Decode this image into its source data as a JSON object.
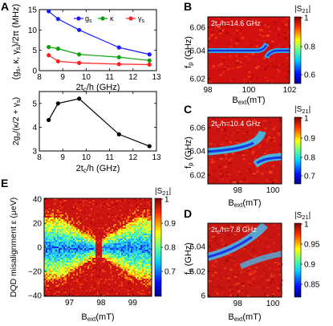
{
  "panel_letters": {
    "A": "A",
    "B": "B",
    "C": "C",
    "D": "D",
    "E": "E"
  },
  "colors": {
    "g_series": "#1a1aff",
    "kappa_series": "#10a010",
    "gamma_series": "#ff2020",
    "black_series": "#000000",
    "heatmap_red": "#d51010",
    "heatmap_yellow": "#f0e020",
    "heatmap_blue": "#1020d0"
  },
  "chart_data": [
    {
      "id": "A-top",
      "type": "line",
      "x": [
        8.4,
        8.8,
        9.7,
        11.4,
        12.7
      ],
      "series": [
        {
          "name": "g",
          "subscript": "s",
          "values": [
            14.6,
            12.7,
            10.0,
            5.7,
            4.0
          ]
        },
        {
          "name": "κ",
          "subscript": "",
          "values": [
            5.8,
            5.4,
            4.0,
            3.3,
            2.5
          ]
        },
        {
          "name": "γ",
          "subscript": "s",
          "values": [
            3.8,
            2.3,
            1.9,
            1.6,
            1.5
          ]
        }
      ],
      "ylabel": "(g",
      "ylabel_parts": [
        "(g",
        "s",
        ", κ, γ",
        "s",
        ")/2π (MHz)"
      ],
      "xlim": [
        8,
        13
      ],
      "ylim": [
        0,
        15
      ],
      "yticks": [
        "0",
        "5",
        "10",
        "15"
      ],
      "xticks": [
        "8",
        "9",
        "10",
        "11",
        "12",
        "13"
      ],
      "legend_placement": "top-right"
    },
    {
      "id": "A-bottom",
      "type": "line",
      "x": [
        8.4,
        8.8,
        9.7,
        11.4,
        12.7
      ],
      "series": [
        {
          "name": "",
          "values": [
            4.3,
            5.0,
            5.2,
            3.7,
            3.2
          ]
        }
      ],
      "xlabel_parts": [
        "2t",
        "c",
        "/h (GHz)"
      ],
      "ylabel_parts": [
        "2g",
        "s",
        "/(κ/2 + γ",
        "s",
        ")"
      ],
      "xlim": [
        8,
        13
      ],
      "ylim": [
        3,
        5.5
      ],
      "yticks": [
        "3",
        "4",
        "5"
      ],
      "xticks": [
        "8",
        "9",
        "10",
        "11",
        "12",
        "13"
      ]
    },
    {
      "id": "B",
      "type": "heatmap",
      "annotation": "2t",
      "annotation_parts": [
        "2t",
        "c",
        "/h=14.6 GHz"
      ],
      "xlabel_parts": [
        "B",
        "ext",
        "(mT)"
      ],
      "ylabel_parts": [
        "f",
        "p",
        " (GHz)"
      ],
      "xticks": [
        "98",
        "100",
        "102"
      ],
      "yticks": [
        "6.06",
        "6.04",
        "6.02"
      ],
      "colorbar_label_parts": [
        "|S",
        "21",
        "|"
      ],
      "colorbar_ticks": [
        "1",
        "0.8",
        "0.6"
      ],
      "xlim": [
        98,
        102
      ],
      "ylim": [
        6.01,
        6.07
      ],
      "crossing_x": 100
    },
    {
      "id": "C",
      "type": "heatmap",
      "annotation_parts": [
        "2t",
        "c",
        "/h=10.4 GHz"
      ],
      "xlabel_parts": [
        "B",
        "ext",
        "(mT)"
      ],
      "ylabel_parts": [
        "f",
        "p",
        " (GHz)"
      ],
      "xticks": [
        "98",
        "100"
      ],
      "yticks": [
        "6.06",
        "6.04",
        "6.02"
      ],
      "colorbar_label_parts": [
        "|S",
        "21",
        "|"
      ],
      "colorbar_ticks": [
        "1",
        "0.9",
        "0.8",
        "0.7"
      ],
      "xlim": [
        96.3,
        100.5
      ],
      "ylim": [
        6.01,
        6.07
      ],
      "crossing_x": 98.5
    },
    {
      "id": "D",
      "type": "heatmap",
      "annotation_parts": [
        "2t",
        "c",
        "/h=7.8 GHz"
      ],
      "xlabel_parts": [
        "B",
        "ext",
        "(mT)"
      ],
      "ylabel_parts": [
        "f",
        "p",
        " (GHz)"
      ],
      "xticks": [
        "98",
        "100"
      ],
      "yticks": [
        "6.04",
        "6.02",
        "6"
      ],
      "colorbar_label_parts": [
        "|S",
        "21",
        "|"
      ],
      "colorbar_ticks": [
        "1",
        "0.95",
        "0.9",
        "0.85"
      ],
      "xlim": [
        96.3,
        100.5
      ],
      "ylim": [
        6.0,
        6.055
      ],
      "crossing_x": 98.5
    },
    {
      "id": "E",
      "type": "heatmap",
      "xlabel_parts": [
        "B",
        "ext",
        "(mT)"
      ],
      "ylabel": "DQD misalignment ε (μeV)",
      "xticks": [
        "97",
        "98",
        "99"
      ],
      "yticks": [
        "40",
        "20",
        "0",
        "−20",
        "−40"
      ],
      "colorbar_label_parts": [
        "|S",
        "21",
        "|"
      ],
      "colorbar_ticks": [
        "1",
        "0.9",
        "0.8",
        "0.7"
      ],
      "xlim": [
        96.2,
        99.6
      ],
      "ylim": [
        -40,
        40
      ],
      "crossing_x": 98
    }
  ]
}
